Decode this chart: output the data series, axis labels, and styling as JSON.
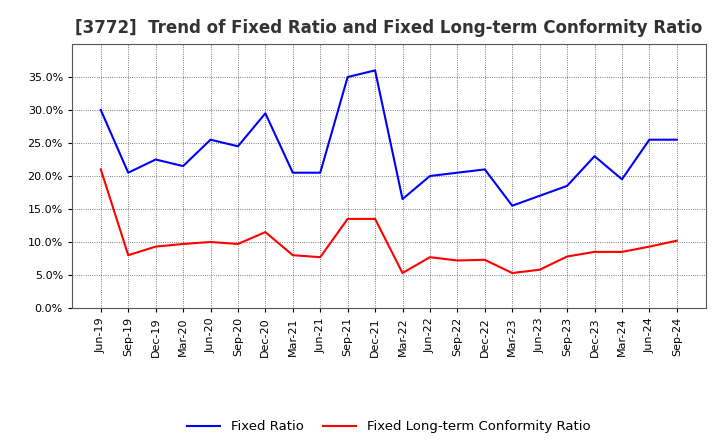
{
  "title": "[3772]  Trend of Fixed Ratio and Fixed Long-term Conformity Ratio",
  "labels": [
    "Jun-19",
    "Sep-19",
    "Dec-19",
    "Mar-20",
    "Jun-20",
    "Sep-20",
    "Dec-20",
    "Mar-21",
    "Jun-21",
    "Sep-21",
    "Dec-21",
    "Mar-22",
    "Jun-22",
    "Sep-22",
    "Dec-22",
    "Mar-23",
    "Jun-23",
    "Sep-23",
    "Dec-23",
    "Mar-24",
    "Jun-24",
    "Sep-24"
  ],
  "fixed_ratio": [
    0.3,
    0.205,
    0.225,
    0.215,
    0.255,
    0.245,
    0.295,
    0.205,
    0.205,
    0.35,
    0.36,
    0.165,
    0.2,
    0.205,
    0.21,
    0.155,
    0.17,
    0.185,
    0.23,
    0.195,
    0.255,
    0.255
  ],
  "fixed_lt_ratio": [
    0.21,
    0.08,
    0.093,
    0.097,
    0.1,
    0.097,
    0.115,
    0.08,
    0.077,
    0.135,
    0.135,
    0.053,
    0.077,
    0.072,
    0.073,
    0.053,
    0.058,
    0.078,
    0.085,
    0.085,
    0.093,
    0.102
  ],
  "fixed_ratio_color": "#0000FF",
  "fixed_lt_ratio_color": "#FF0000",
  "ylim": [
    0.0,
    0.4
  ],
  "yticks": [
    0.0,
    0.05,
    0.1,
    0.15,
    0.2,
    0.25,
    0.3,
    0.35
  ],
  "background_color": "#FFFFFF",
  "plot_bg_color": "#FFFFFF",
  "grid_color": "#555555",
  "legend_fixed_ratio": "Fixed Ratio",
  "legend_fixed_lt_ratio": "Fixed Long-term Conformity Ratio",
  "title_fontsize": 12,
  "tick_fontsize": 8,
  "legend_fontsize": 9.5,
  "linewidth": 1.5
}
